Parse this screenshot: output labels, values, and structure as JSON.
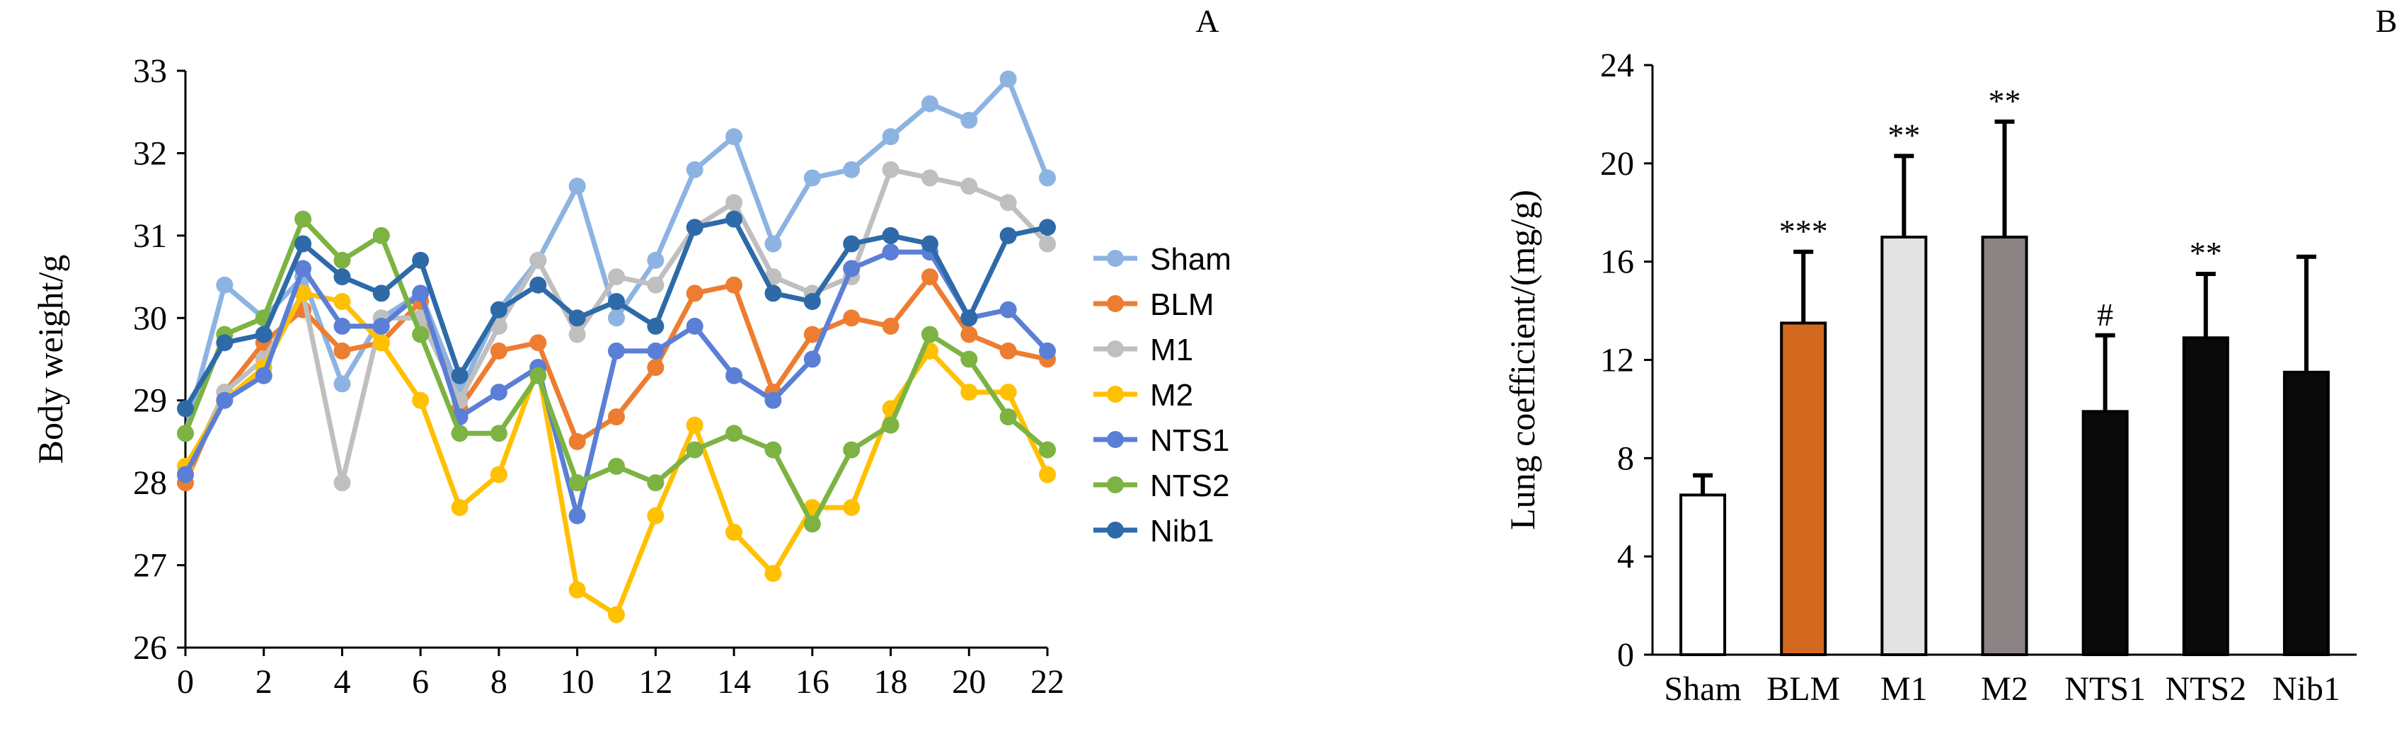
{
  "chart_data": [
    {
      "panel_label": "A",
      "type": "line",
      "ylabel": "Body weight/g",
      "xlabel": "",
      "ylim": [
        26,
        33
      ],
      "yticks": [
        26,
        27,
        28,
        29,
        30,
        31,
        32,
        33
      ],
      "xlim": [
        0,
        22
      ],
      "xticks": [
        0,
        2,
        4,
        6,
        8,
        10,
        12,
        14,
        16,
        18,
        20,
        22
      ],
      "x": [
        0,
        1,
        2,
        3,
        4,
        5,
        6,
        7,
        8,
        9,
        10,
        11,
        12,
        13,
        14,
        15,
        16,
        17,
        18,
        19,
        20,
        21,
        22
      ],
      "series": [
        {
          "name": "Sham",
          "color": "#8db3e2",
          "values": [
            28.6,
            30.4,
            30.0,
            30.5,
            29.2,
            30.0,
            30.3,
            29.1,
            30.1,
            30.7,
            31.6,
            30.0,
            30.7,
            31.8,
            32.2,
            30.9,
            31.7,
            31.8,
            32.2,
            32.6,
            32.4,
            32.9,
            31.7
          ]
        },
        {
          "name": "BLM",
          "color": "#ed7d31",
          "values": [
            28.0,
            29.1,
            29.7,
            30.1,
            29.6,
            29.7,
            30.2,
            28.9,
            29.6,
            29.7,
            28.5,
            28.8,
            29.4,
            30.3,
            30.4,
            29.1,
            29.8,
            30.0,
            29.9,
            30.5,
            29.8,
            29.6,
            29.5
          ]
        },
        {
          "name": "M1",
          "color": "#bfbfbf",
          "values": [
            28.1,
            29.1,
            29.5,
            30.3,
            28.0,
            30.0,
            30.0,
            29.0,
            29.9,
            30.7,
            29.8,
            30.5,
            30.4,
            31.1,
            31.4,
            30.5,
            30.3,
            30.5,
            31.8,
            31.7,
            31.6,
            31.4,
            30.9
          ]
        },
        {
          "name": "M2",
          "color": "#ffc000",
          "values": [
            28.2,
            29.0,
            29.4,
            30.3,
            30.2,
            29.7,
            29.0,
            27.7,
            28.1,
            29.4,
            26.7,
            26.4,
            27.6,
            28.7,
            27.4,
            26.9,
            27.7,
            27.7,
            28.9,
            29.6,
            29.1,
            29.1,
            28.1
          ]
        },
        {
          "name": "NTS1",
          "color": "#5b7fd6",
          "values": [
            28.1,
            29.0,
            29.3,
            30.6,
            29.9,
            29.9,
            30.3,
            28.8,
            29.1,
            29.4,
            27.6,
            29.6,
            29.6,
            29.9,
            29.3,
            29.0,
            29.5,
            30.6,
            30.8,
            30.8,
            30.0,
            30.1,
            29.6
          ]
        },
        {
          "name": "NTS2",
          "color": "#7cb342",
          "values": [
            28.6,
            29.8,
            30.0,
            31.2,
            30.7,
            31.0,
            29.8,
            28.6,
            28.6,
            29.3,
            28.0,
            28.2,
            28.0,
            28.4,
            28.6,
            28.4,
            27.5,
            28.4,
            28.7,
            29.8,
            29.5,
            28.8,
            28.4
          ]
        },
        {
          "name": "Nib1",
          "color": "#2e6aa8",
          "values": [
            28.9,
            29.7,
            29.8,
            30.9,
            30.5,
            30.3,
            30.7,
            29.3,
            30.1,
            30.4,
            30.0,
            30.2,
            29.9,
            31.1,
            31.2,
            30.3,
            30.2,
            30.9,
            31.0,
            30.9,
            30.0,
            31.0,
            31.1
          ]
        }
      ]
    },
    {
      "panel_label": "B",
      "type": "bar",
      "ylabel": "Lung coefficient/(mg/g)",
      "xlabel": "",
      "ylim": [
        0,
        24
      ],
      "yticks": [
        0,
        4,
        8,
        12,
        16,
        20,
        24
      ],
      "categories": [
        "Sham",
        "BLM",
        "M1",
        "M2",
        "NTS1",
        "NTS2",
        "Nib1"
      ],
      "values": [
        6.5,
        13.5,
        17.0,
        17.0,
        9.9,
        12.9,
        11.5
      ],
      "errors": [
        0.8,
        2.9,
        3.3,
        4.7,
        3.1,
        2.6,
        4.7
      ],
      "colors": [
        "#ffffff",
        "#d2691e",
        "#e3e3e3",
        "#8c8484",
        "#0a0a0a",
        "#0a0a0a",
        "#0a0a0a"
      ],
      "annotations": [
        "",
        "***",
        "**",
        "**",
        "#",
        "**",
        ""
      ]
    }
  ]
}
